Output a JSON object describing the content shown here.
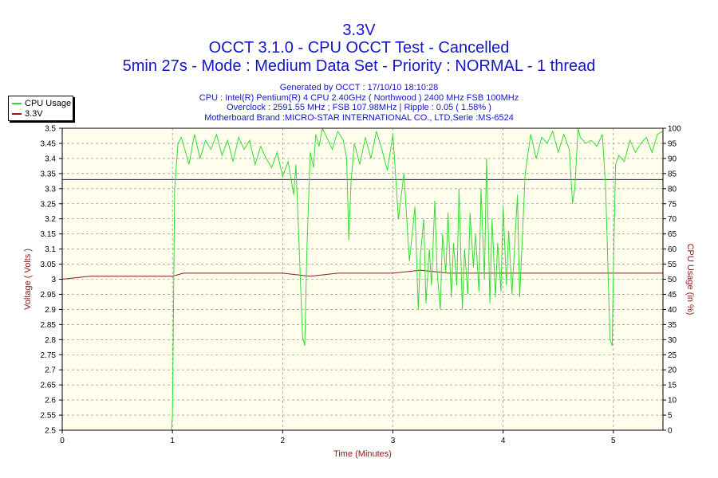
{
  "header": {
    "title": "3.3V",
    "subtitle": "OCCT 3.1.0 - CPU OCCT Test - Cancelled",
    "subtitle2": "5min 27s - Mode : Medium Data Set - Priority : NORMAL - 1 thread",
    "info": [
      "Generated by OCCT : 17/10/10 18:10:28",
      "CPU : Intel(R) Pentium(R) 4 CPU 2.40GHz ( Northwood ) 2400 MHz FSB 100MHz",
      "Overclock : 2591.55 MHz ; FSB 107.98MHz | Ripple : 0.05 ( 1.58% )",
      "Motherboard Brand :MICRO-STAR INTERNATIONAL CO., LTD,Serie :MS-6524"
    ]
  },
  "legend": {
    "items": [
      {
        "label": "CPU Usage",
        "color": "#33dd33"
      },
      {
        "label": "3.3V",
        "color": "#8b1a1a"
      }
    ]
  },
  "colors": {
    "plot_bg": "#fffdeb",
    "grid": "#808080",
    "reference_line": "#1515c8",
    "cpu_line": "#33dd33",
    "voltage_line": "#8b1a1a",
    "title": "#1515c8",
    "axis_label": "#8b1a1a"
  },
  "chart_data": {
    "type": "line",
    "xlabel": "Time (Minutes)",
    "ylabel_left": "Voltage ( Volts )",
    "ylabel_right": "CPU Usage (in %)",
    "xlim": [
      0,
      5.45
    ],
    "ylim_left": [
      2.5,
      3.5
    ],
    "ylim_right": [
      0,
      100
    ],
    "x_ticks": [
      0,
      1,
      2,
      3,
      4,
      5
    ],
    "y_ticks_left": [
      "2.5",
      "2.55",
      "2.6",
      "2.65",
      "2.7",
      "2.75",
      "2.8",
      "2.85",
      "2.9",
      "2.95",
      "3",
      "3.05",
      "3.1",
      "3.15",
      "3.2",
      "3.25",
      "3.3",
      "3.35",
      "3.4",
      "3.45",
      "3.5"
    ],
    "y_ticks_right": [
      "0",
      "5",
      "10",
      "15",
      "20",
      "25",
      "30",
      "35",
      "40",
      "45",
      "50",
      "55",
      "60",
      "65",
      "70",
      "75",
      "80",
      "85",
      "90",
      "95",
      "100"
    ],
    "grid": true,
    "legend_position": "top-left",
    "reference_line": {
      "axis": "left",
      "value": 3.33
    },
    "series": [
      {
        "name": "CPU Usage",
        "axis": "right",
        "x": [
          0,
          0.99,
          1.0,
          1.02,
          1.05,
          1.08,
          1.12,
          1.15,
          1.2,
          1.25,
          1.3,
          1.35,
          1.4,
          1.45,
          1.5,
          1.55,
          1.6,
          1.65,
          1.7,
          1.75,
          1.8,
          1.85,
          1.9,
          1.95,
          2.0,
          2.05,
          2.1,
          2.12,
          2.15,
          2.18,
          2.2,
          2.22,
          2.25,
          2.28,
          2.3,
          2.33,
          2.36,
          2.4,
          2.45,
          2.5,
          2.55,
          2.58,
          2.6,
          2.62,
          2.65,
          2.7,
          2.75,
          2.8,
          2.85,
          2.9,
          2.95,
          3.0,
          3.05,
          3.1,
          3.15,
          3.2,
          3.23,
          3.25,
          3.28,
          3.3,
          3.33,
          3.35,
          3.38,
          3.4,
          3.43,
          3.45,
          3.48,
          3.5,
          3.53,
          3.55,
          3.58,
          3.6,
          3.63,
          3.65,
          3.68,
          3.7,
          3.73,
          3.75,
          3.78,
          3.8,
          3.83,
          3.85,
          3.88,
          3.9,
          3.93,
          3.95,
          3.98,
          4.0,
          4.03,
          4.05,
          4.08,
          4.1,
          4.13,
          4.15,
          4.2,
          4.25,
          4.3,
          4.35,
          4.4,
          4.45,
          4.5,
          4.55,
          4.6,
          4.63,
          4.65,
          4.68,
          4.7,
          4.75,
          4.8,
          4.85,
          4.9,
          4.93,
          4.95,
          4.97,
          4.99,
          5.0,
          5.02,
          5.05,
          5.1,
          5.15,
          5.2,
          5.25,
          5.3,
          5.35,
          5.4,
          5.45
        ],
        "y": [
          0,
          0,
          5,
          80,
          95,
          97,
          92,
          88,
          98,
          90,
          96,
          93,
          98,
          91,
          96,
          89,
          97,
          93,
          96,
          88,
          94,
          90,
          87,
          92,
          84,
          89,
          78,
          88,
          60,
          31,
          28,
          60,
          92,
          87,
          98,
          94,
          100,
          97,
          93,
          99,
          96,
          90,
          63,
          82,
          95,
          88,
          97,
          90,
          99,
          93,
          86,
          98,
          70,
          85,
          56,
          74,
          40,
          58,
          70,
          42,
          60,
          48,
          76,
          53,
          40,
          65,
          52,
          72,
          44,
          62,
          48,
          80,
          40,
          60,
          45,
          72,
          54,
          65,
          46,
          80,
          50,
          90,
          42,
          70,
          44,
          62,
          46,
          74,
          48,
          66,
          45,
          58,
          78,
          44,
          85,
          98,
          90,
          97,
          95,
          99,
          92,
          98,
          93,
          75,
          80,
          100,
          97,
          95,
          96,
          94,
          98,
          80,
          55,
          30,
          28,
          52,
          88,
          91,
          89,
          96,
          92,
          95,
          97,
          92,
          98,
          99
        ]
      },
      {
        "name": "3.3V",
        "axis": "left",
        "x": [
          0,
          0.25,
          0.5,
          0.75,
          1.0,
          1.1,
          1.25,
          1.5,
          1.75,
          2.0,
          2.25,
          2.5,
          2.75,
          3.0,
          3.25,
          3.5,
          3.75,
          4.0,
          4.25,
          4.5,
          4.75,
          5.0,
          5.25,
          5.45
        ],
        "y": [
          3.0,
          3.01,
          3.01,
          3.01,
          3.01,
          3.02,
          3.02,
          3.02,
          3.02,
          3.02,
          3.01,
          3.02,
          3.02,
          3.02,
          3.03,
          3.02,
          3.02,
          3.02,
          3.02,
          3.02,
          3.02,
          3.02,
          3.02,
          3.02
        ]
      }
    ]
  }
}
